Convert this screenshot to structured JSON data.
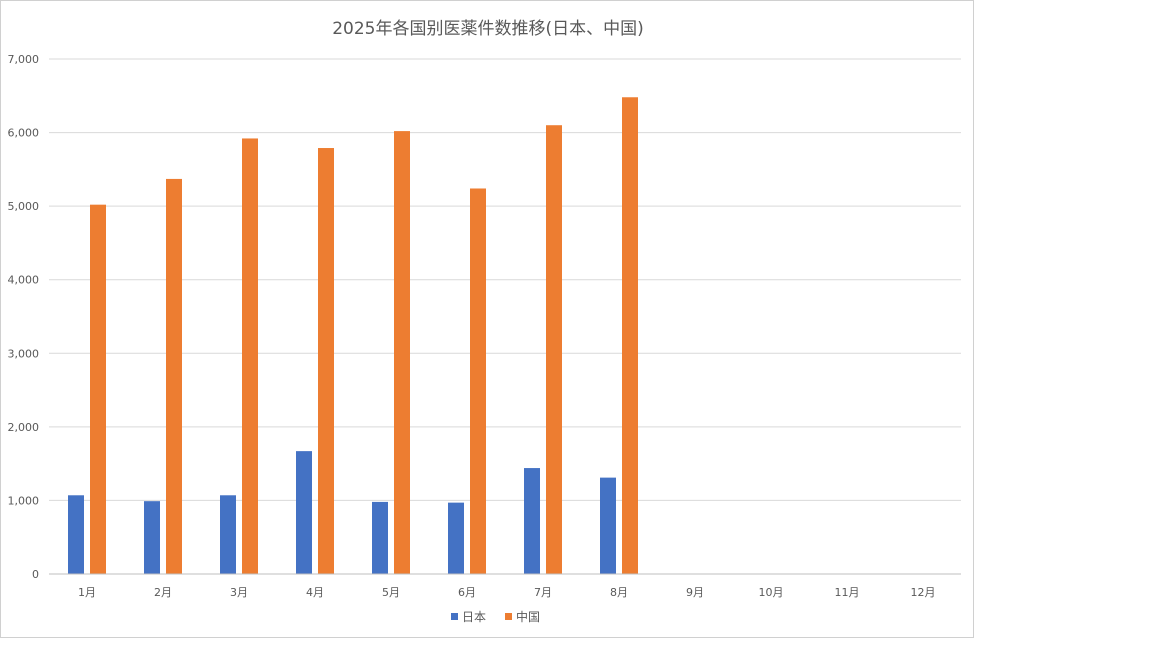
{
  "chart_data": {
    "type": "bar",
    "title": "2025年各国别医薬件数推移(日本、中国)",
    "xlabel": "",
    "ylabel": "",
    "categories": [
      "1月",
      "2月",
      "3月",
      "4月",
      "5月",
      "6月",
      "7月",
      "8月",
      "9月",
      "10月",
      "11月",
      "12月"
    ],
    "series": [
      {
        "name": "日本",
        "color": "#4472c4",
        "values": [
          1070,
          990,
          1070,
          1670,
          980,
          970,
          1440,
          1310,
          null,
          null,
          null,
          null
        ]
      },
      {
        "name": "中国",
        "color": "#ed7d31",
        "values": [
          5020,
          5370,
          5920,
          5790,
          6020,
          5240,
          6100,
          6480,
          null,
          null,
          null,
          null
        ]
      }
    ],
    "ylim": [
      0,
      7000
    ],
    "yticks": [
      0,
      1000,
      2000,
      3000,
      4000,
      5000,
      6000,
      7000
    ],
    "ytick_labels": [
      "0",
      "1,000",
      "2,000",
      "3,000",
      "4,000",
      "5,000",
      "6,000",
      "7,000"
    ],
    "grid": true,
    "legend_position": "bottom"
  }
}
